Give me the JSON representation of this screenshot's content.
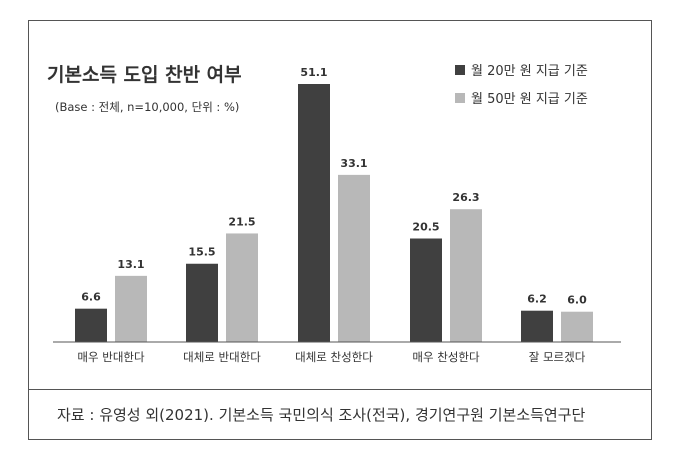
{
  "chart_data": {
    "type": "bar",
    "title": "기본소득 도입 찬반 여부",
    "subtitle": "(Base : 전체, n=10,000, 단위 : %)",
    "categories": [
      "매우 반대한다",
      "대체로 반대한다",
      "대체로 찬성한다",
      "매우 찬성한다",
      "잘 모르겠다"
    ],
    "series": [
      {
        "name": "월 20만 원 지급 기준",
        "color": "#404040",
        "values": [
          6.6,
          15.5,
          51.1,
          20.5,
          6.2
        ]
      },
      {
        "name": "월 50만 원 지급 기준",
        "color": "#b8b8b8",
        "values": [
          13.1,
          21.5,
          33.1,
          26.3,
          6.0
        ]
      }
    ],
    "ylim": [
      0,
      51.1
    ],
    "grid": false,
    "legend_position": "top-right"
  },
  "source": "자료 : 유영성 외(2021). 기본소득 국민의식 조사(전국), 경기연구원 기본소득연구단"
}
